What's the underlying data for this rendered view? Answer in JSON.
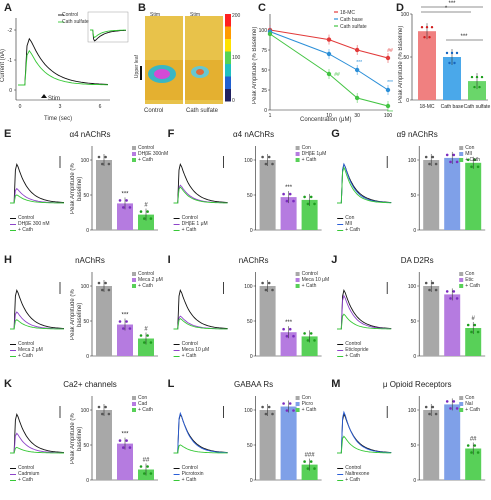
{
  "colors": {
    "control": "#111111",
    "treat1": "#8e44c9",
    "treat2": "#37c837",
    "grey": "#a0a0a0",
    "red": "#e23a3a",
    "blue": "#2b8fd8",
    "green": "#43c443"
  },
  "panelA": {
    "label": "A",
    "ylabel": "Current (nA)",
    "xlabel": "Time (sec)",
    "yticks": [
      "-2",
      "-1",
      "0"
    ],
    "xticks": [
      "0",
      "3",
      "6"
    ],
    "stim": "Stim",
    "legend": [
      "Control",
      "Cath sulfate"
    ]
  },
  "panelB": {
    "label": "B",
    "tiles": [
      "Control",
      "Cath sulfate"
    ],
    "top_tags": [
      "Stim",
      "Stim"
    ],
    "side_tag": "Upper leaf",
    "scale": [
      "200",
      "100",
      "0"
    ]
  },
  "panelC": {
    "label": "C",
    "ylabel": "Peak Amplitude (% Baseline)",
    "xlabel": "Concentration (μM)",
    "legend": [
      "18-MC",
      "Cath base",
      "Cath sulfate"
    ],
    "chart_data": {
      "type": "line",
      "x": [
        1,
        10,
        30,
        100
      ],
      "ylim": [
        0,
        120
      ],
      "series": [
        {
          "name": "18-MC",
          "values": [
            100,
            88,
            75,
            65
          ]
        },
        {
          "name": "Cath base",
          "values": [
            98,
            70,
            50,
            25
          ]
        },
        {
          "name": "Cath sulfate",
          "values": [
            95,
            45,
            15,
            5
          ]
        }
      ]
    },
    "annot": [
      "##",
      "***",
      "***",
      "##",
      "***"
    ]
  },
  "panelD": {
    "label": "D",
    "ylabel": "Peak Amplitude (% Baseline)",
    "categories": [
      "18-MC",
      "Cath base",
      "Cath sulfate"
    ],
    "chart_data": {
      "type": "bar",
      "categories": [
        "18-MC",
        "Cath base",
        "Cath sulfate"
      ],
      "values": [
        80,
        50,
        22
      ],
      "ylim": [
        0,
        100
      ]
    },
    "sig": [
      "*",
      "***",
      "***"
    ]
  },
  "rows": [
    {
      "label": "E",
      "title": "α4 nAChRs",
      "traceLeg": [
        "Control",
        "DHβE 300 nM",
        "+ Cath"
      ],
      "barLeg": [
        "Control",
        "DHβE 300nM",
        "+ Cath"
      ],
      "values": [
        100,
        38,
        22
      ],
      "sig": [
        "",
        "***",
        "#"
      ],
      "ylabel": "Peak Amplitude (% baseline)"
    },
    {
      "label": "F",
      "title": "α4 nAChRs",
      "traceLeg": [
        "Control",
        "DHβE 1 μM",
        "+ Cath"
      ],
      "barLeg": [
        "Con",
        "DHβE 1μM",
        "+ Cath"
      ],
      "values": [
        100,
        47,
        43
      ],
      "sig": [
        "",
        "***",
        ""
      ],
      "ylabel": ""
    },
    {
      "label": "G",
      "title": "α9 nAChRs",
      "traceLeg": [
        "Con",
        "MII",
        "+ Cath"
      ],
      "barLeg": [
        "Con",
        "MII",
        "+ Cath"
      ],
      "values": [
        100,
        103,
        96
      ],
      "sig": [
        "",
        "",
        ""
      ],
      "ylabel": ""
    },
    {
      "label": "H",
      "title": "nAChRs",
      "traceLeg": [
        "Control",
        "Meca 2 μM",
        "+ Cath"
      ],
      "barLeg": [
        "Control",
        "Meca 2 μM",
        "+ Cath"
      ],
      "values": [
        100,
        45,
        25
      ],
      "sig": [
        "",
        "***",
        "#"
      ],
      "ylabel": "Peak Amplitude (% baseline)"
    },
    {
      "label": "I",
      "title": "nAChRs",
      "traceLeg": [
        "Control",
        "Meca 10 μM",
        "+ Cath"
      ],
      "barLeg": [
        "Control",
        "Meca 10 μM",
        "+ Cath"
      ],
      "values": [
        100,
        34,
        28
      ],
      "sig": [
        "",
        "***",
        ""
      ],
      "ylabel": ""
    },
    {
      "label": "J",
      "title": "DA D2Rs",
      "traceLeg": [
        "Control",
        "Eticlopride",
        "+ Cath"
      ],
      "barLeg": [
        "Con",
        "Etic",
        "+ Cath"
      ],
      "values": [
        100,
        88,
        40
      ],
      "sig": [
        "",
        "",
        "#"
      ],
      "ylabel": ""
    },
    {
      "label": "K",
      "title": "Ca2+ channels",
      "traceLeg": [
        "Control",
        "Cadmium",
        "+ Cath"
      ],
      "barLeg": [
        "Con",
        "Cad",
        "+ Cath"
      ],
      "values": [
        100,
        52,
        15
      ],
      "sig": [
        "",
        "***",
        "##"
      ],
      "ylabel": "Peak Amplitude (% baseline)"
    },
    {
      "label": "L",
      "title": "GABAA Rs",
      "traceLeg": [
        "Control",
        "Picrotoxin",
        "+ Cath"
      ],
      "barLeg": [
        "Con",
        "Picro",
        "+ Cath"
      ],
      "values": [
        100,
        105,
        22
      ],
      "sig": [
        "",
        "",
        "###"
      ],
      "ylabel": ""
    },
    {
      "label": "M",
      "title": "μ Opioid Receptors",
      "traceLeg": [
        "Control",
        "Naltrexone",
        "+ Cath"
      ],
      "barLeg": [
        "Con",
        "Nal",
        "+ Cath"
      ],
      "values": [
        100,
        108,
        45
      ],
      "sig": [
        "",
        "",
        "##"
      ],
      "ylabel": ""
    }
  ],
  "bar_axis": {
    "yticks": [
      "0",
      "50",
      "100"
    ]
  }
}
